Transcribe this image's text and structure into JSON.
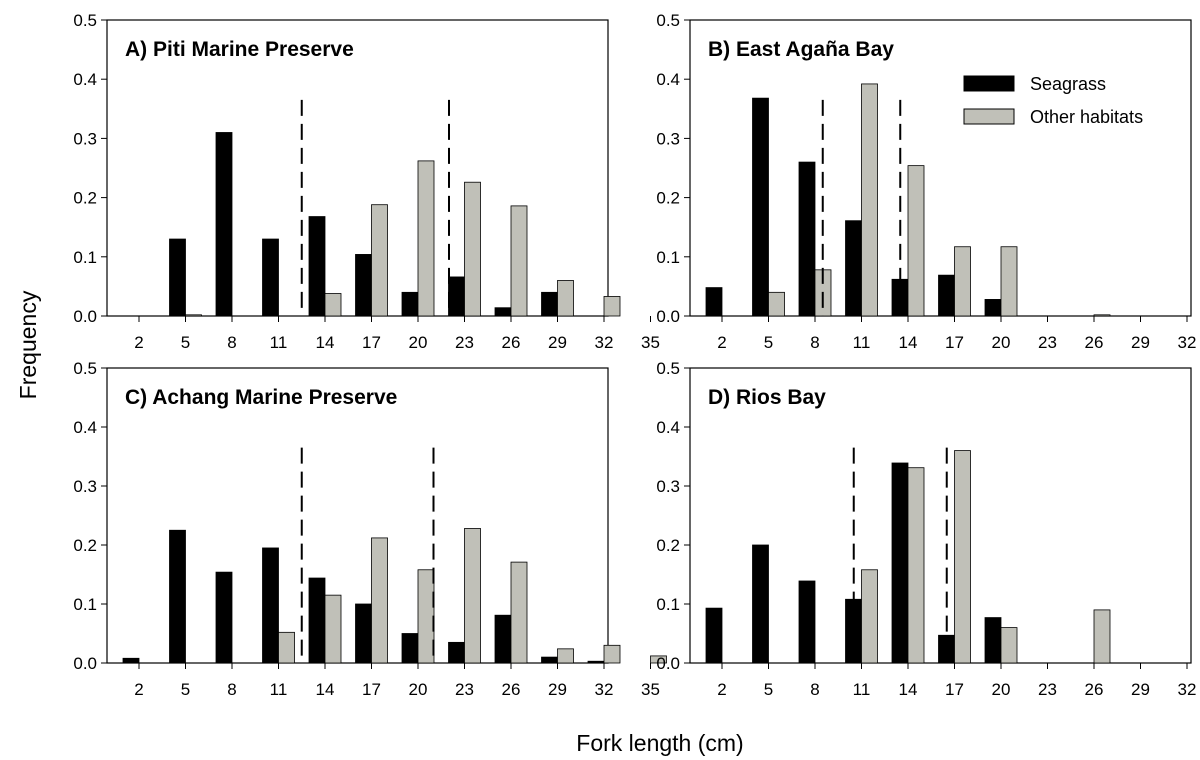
{
  "figure": {
    "xlabel": "Fork length (cm)",
    "ylabel": "Frequency",
    "legend": {
      "placement": "top-right of panel B",
      "entries": [
        {
          "label": "Seagrass",
          "color": "#000000"
        },
        {
          "label": "Other habitats",
          "color": "#c0c0b8"
        }
      ]
    }
  },
  "chart_data": [
    {
      "type": "bar",
      "title": "A) Piti Marine Preserve",
      "categories": [
        "2",
        "5",
        "8",
        "11",
        "14",
        "17",
        "20",
        "23",
        "26",
        "29",
        "32",
        "35"
      ],
      "ylim": [
        0,
        0.5
      ],
      "yticks": [
        "0.0",
        "0.1",
        "0.2",
        "0.3",
        "0.4",
        "0.5"
      ],
      "series": [
        {
          "name": "Seagrass",
          "color": "#000000",
          "values": [
            0,
            0.13,
            0.31,
            0.13,
            0.168,
            0.104,
            0.04,
            0.066,
            0.014,
            0.04,
            0,
            0
          ]
        },
        {
          "name": "Other habitats",
          "color": "#c0c0b8",
          "values": [
            0,
            0.002,
            0,
            0,
            0.038,
            0.188,
            0.262,
            0.226,
            0.186,
            0.06,
            0.033,
            0
          ]
        }
      ],
      "dashed_lines_x": [
        12.5,
        22.0
      ]
    },
    {
      "type": "bar",
      "title": "B) East Agaña Bay",
      "categories": [
        "2",
        "5",
        "8",
        "11",
        "14",
        "17",
        "20",
        "23",
        "26",
        "29",
        "32",
        "35"
      ],
      "ylim": [
        0,
        0.5
      ],
      "yticks": [
        "0.0",
        "0.1",
        "0.2",
        "0.3",
        "0.4",
        "0.5"
      ],
      "series": [
        {
          "name": "Seagrass",
          "color": "#000000",
          "values": [
            0.048,
            0.368,
            0.26,
            0.161,
            0.062,
            0.069,
            0.028,
            0,
            0,
            0,
            0,
            0
          ]
        },
        {
          "name": "Other habitats",
          "color": "#c0c0b8",
          "values": [
            0,
            0.04,
            0.078,
            0.392,
            0.254,
            0.117,
            0.117,
            0,
            0.002,
            0,
            0,
            0
          ]
        }
      ],
      "dashed_lines_x": [
        8.5,
        13.5
      ]
    },
    {
      "type": "bar",
      "title": "C) Achang Marine Preserve",
      "categories": [
        "2",
        "5",
        "8",
        "11",
        "14",
        "17",
        "20",
        "23",
        "26",
        "29",
        "32",
        "35"
      ],
      "ylim": [
        0,
        0.5
      ],
      "yticks": [
        "0.0",
        "0.1",
        "0.2",
        "0.3",
        "0.4",
        "0.5"
      ],
      "series": [
        {
          "name": "Seagrass",
          "color": "#000000",
          "values": [
            0.008,
            0.225,
            0.154,
            0.195,
            0.144,
            0.1,
            0.05,
            0.035,
            0.081,
            0.01,
            0.003,
            0
          ]
        },
        {
          "name": "Other habitats",
          "color": "#c0c0b8",
          "values": [
            0,
            0,
            0,
            0.052,
            0.115,
            0.212,
            0.158,
            0.228,
            0.171,
            0.024,
            0.03,
            0.012
          ]
        }
      ],
      "dashed_lines_x": [
        12.5,
        21.0
      ]
    },
    {
      "type": "bar",
      "title": "D) Rios Bay",
      "categories": [
        "2",
        "5",
        "8",
        "11",
        "14",
        "17",
        "20",
        "23",
        "26",
        "29",
        "32",
        "35"
      ],
      "ylim": [
        0,
        0.5
      ],
      "yticks": [
        "0.0",
        "0.1",
        "0.2",
        "0.3",
        "0.4",
        "0.5"
      ],
      "series": [
        {
          "name": "Seagrass",
          "color": "#000000",
          "values": [
            0.093,
            0.2,
            0.139,
            0.108,
            0.339,
            0.047,
            0.077,
            0,
            0,
            0,
            0,
            0
          ]
        },
        {
          "name": "Other habitats",
          "color": "#c0c0b8",
          "values": [
            0,
            0,
            0,
            0.158,
            0.331,
            0.36,
            0.06,
            0,
            0.09,
            0,
            0,
            0
          ]
        }
      ],
      "dashed_lines_x": [
        10.5,
        16.5
      ]
    }
  ]
}
